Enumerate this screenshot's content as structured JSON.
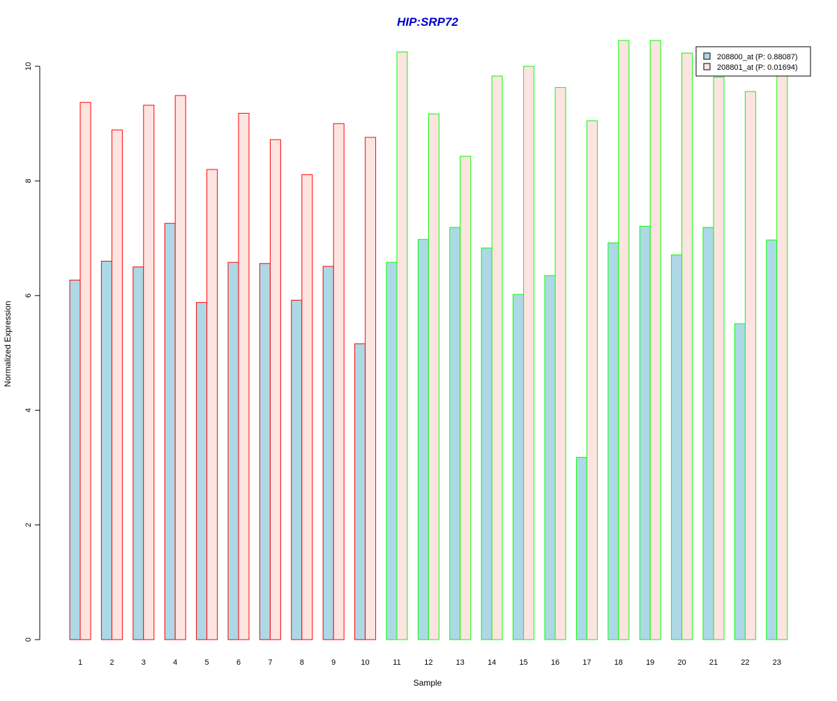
{
  "chart_data": {
    "type": "bar",
    "title": "HIP:SRP72",
    "xlabel": "Sample",
    "ylabel": "Normalized Expression",
    "ylim": [
      0,
      10
    ],
    "yticks": [
      0,
      2,
      4,
      6,
      8,
      10
    ],
    "grid": false,
    "legend_position": "top-right",
    "categories": [
      "1",
      "2",
      "3",
      "4",
      "5",
      "6",
      "7",
      "8",
      "9",
      "10",
      "11",
      "12",
      "13",
      "14",
      "15",
      "16",
      "17",
      "18",
      "19",
      "20",
      "21",
      "22",
      "23"
    ],
    "group_border_colors": [
      "#ff0000",
      "#ff0000",
      "#ff0000",
      "#ff0000",
      "#ff0000",
      "#ff0000",
      "#ff0000",
      "#ff0000",
      "#ff0000",
      "#ff0000",
      "#00ff00",
      "#00ff00",
      "#00ff00",
      "#00ff00",
      "#00ff00",
      "#00ff00",
      "#00ff00",
      "#00ff00",
      "#00ff00",
      "#00ff00",
      "#00ff00",
      "#00ff00",
      "#00ff00"
    ],
    "series": [
      {
        "name": "208800_at (P: 0.88087)",
        "fill": "#add8e6",
        "values": [
          6.27,
          6.6,
          6.5,
          7.26,
          5.88,
          6.58,
          6.56,
          5.92,
          6.51,
          5.16,
          6.58,
          6.98,
          7.19,
          6.83,
          6.02,
          6.35,
          3.18,
          6.92,
          7.21,
          6.71,
          7.19,
          5.51,
          6.97
        ]
      },
      {
        "name": "208801_at (P: 0.01694)",
        "fill": "#fde4e1",
        "values": [
          9.37,
          8.89,
          9.32,
          9.49,
          8.2,
          9.18,
          8.72,
          8.11,
          9.0,
          8.76,
          10.25,
          9.17,
          8.43,
          9.83,
          10.0,
          9.63,
          9.05,
          10.45,
          10.45,
          10.23,
          9.81,
          9.56,
          10.04
        ]
      }
    ]
  },
  "legend": {
    "entries": [
      "208800_at (P: 0.88087)",
      "208801_at (P: 0.01694)"
    ]
  }
}
